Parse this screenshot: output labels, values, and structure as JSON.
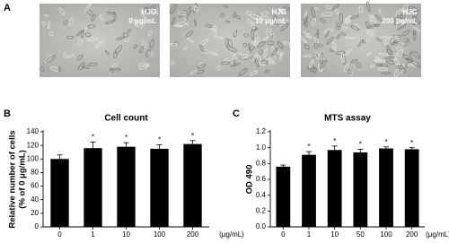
{
  "panel_a": {
    "label": "A",
    "images": [
      {
        "lines": [
          "HJG",
          "0 μg/mL"
        ]
      },
      {
        "lines": [
          "HJG",
          "10 μg/mL"
        ]
      },
      {
        "lines": [
          "HJG",
          "200 μg/mL"
        ]
      }
    ]
  },
  "chart_data": [
    {
      "type": "bar",
      "panel": "B",
      "title": "Cell count",
      "ylabel": [
        "Relative number of cells",
        "(% of 0 μg/mL)"
      ],
      "xunit": "(μg/mL)",
      "categories": [
        "0",
        "1",
        "10",
        "100",
        "200"
      ],
      "values": [
        100,
        116,
        118,
        115,
        122
      ],
      "errors": [
        6,
        9,
        6,
        6,
        5
      ],
      "significance": [
        null,
        "*",
        "*",
        "*",
        "*"
      ],
      "color": "#000000",
      "ylim": [
        0,
        140
      ],
      "yticks": [
        0,
        20,
        40,
        60,
        80,
        100,
        120,
        140
      ]
    },
    {
      "type": "bar",
      "panel": "C",
      "title": "MTS assay",
      "ylabel": [
        "OD 490"
      ],
      "xunit": "(μg/mL)",
      "categories": [
        "0",
        "1",
        "10",
        "50",
        "100",
        "200"
      ],
      "values": [
        0.76,
        0.91,
        0.97,
        0.94,
        0.99,
        0.98
      ],
      "errors": [
        0.02,
        0.04,
        0.05,
        0.04,
        0.02,
        0.02
      ],
      "significance": [
        null,
        "*",
        "*",
        "*",
        "*",
        "*"
      ],
      "color": "#000000",
      "ylim": [
        0,
        1.2
      ],
      "yticks": [
        {
          "value": 0,
          "label": "0.0"
        },
        0.2,
        0.4,
        0.6,
        0.8,
        {
          "value": 1,
          "label": "1.0"
        },
        {
          "value": 1.2,
          "label": "1.2"
        }
      ]
    }
  ]
}
